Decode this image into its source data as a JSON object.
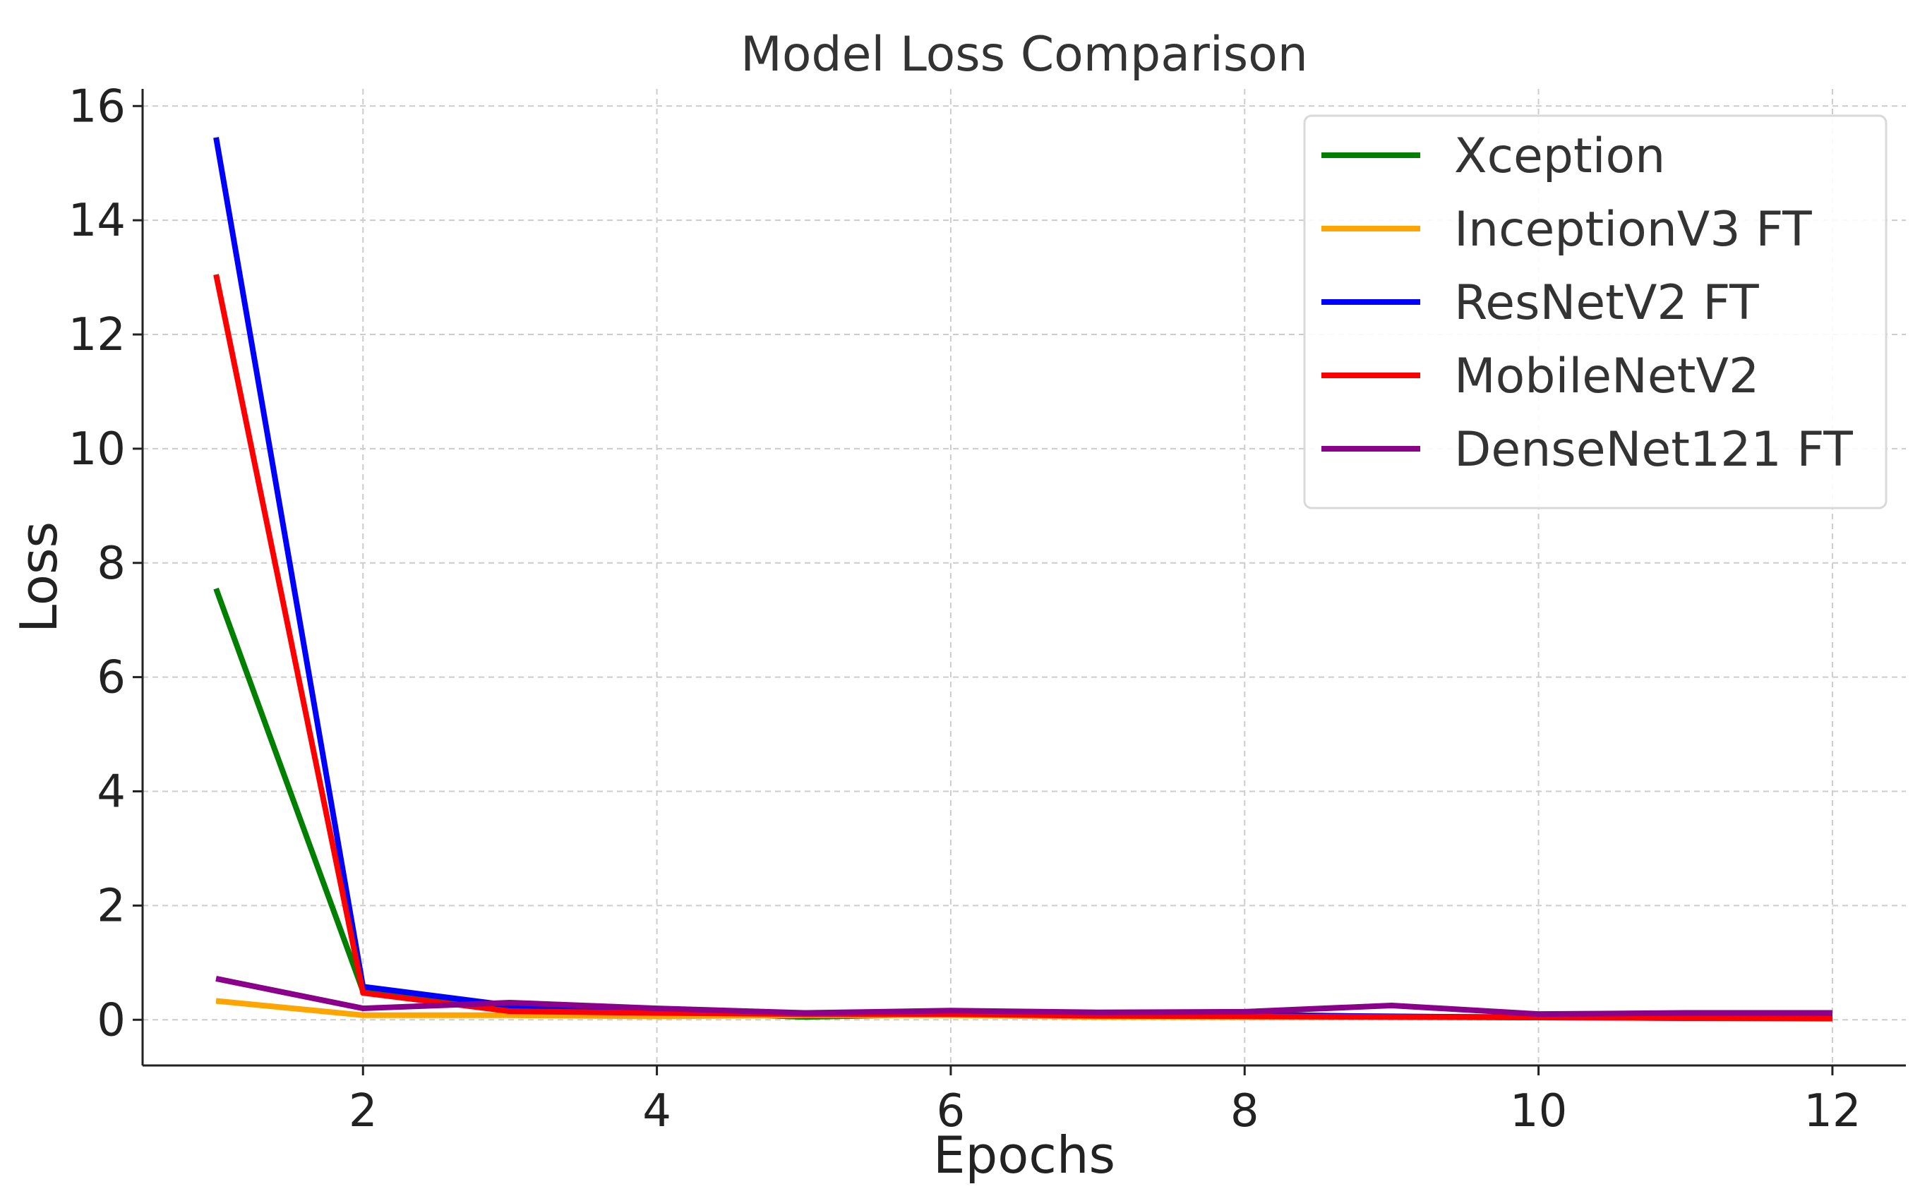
{
  "chart_data": {
    "type": "line",
    "title": "Model Loss Comparison",
    "xlabel": "Epochs",
    "ylabel": "Loss",
    "xlim": [
      0.5,
      12.5
    ],
    "ylim": [
      -0.8,
      16.3
    ],
    "xticks": [
      2,
      4,
      6,
      8,
      10,
      12
    ],
    "yticks": [
      0,
      2,
      4,
      6,
      8,
      10,
      12,
      14,
      16
    ],
    "grid": true,
    "legend_position": "top-right",
    "x": [
      1,
      2,
      3,
      4,
      5,
      6,
      7,
      8,
      9,
      10,
      11,
      12
    ],
    "series": [
      {
        "name": "Xception",
        "color": "#008000",
        "values": [
          7.55,
          0.5,
          0.2,
          0.15,
          0.05,
          0.1,
          0.08,
          0.1,
          0.05,
          0.05,
          0.06,
          0.08
        ]
      },
      {
        "name": "InceptionV3 FT",
        "color": "#FFA500",
        "values": [
          0.33,
          0.08,
          0.08,
          0.06,
          0.08,
          0.08,
          0.05,
          0.05,
          0.05,
          0.05,
          0.05,
          0.05
        ]
      },
      {
        "name": "ResNetV2 FT",
        "color": "#0000FF",
        "values": [
          15.45,
          0.58,
          0.25,
          0.18,
          0.1,
          0.12,
          0.1,
          0.08,
          0.06,
          0.04,
          0.03,
          0.03
        ]
      },
      {
        "name": "MobileNetV2",
        "color": "#FF0000",
        "values": [
          13.05,
          0.47,
          0.15,
          0.12,
          0.1,
          0.1,
          0.07,
          0.06,
          0.05,
          0.04,
          0.03,
          0.02
        ]
      },
      {
        "name": "DenseNet121 FT",
        "color": "#8B008B",
        "values": [
          0.72,
          0.2,
          0.3,
          0.2,
          0.12,
          0.16,
          0.13,
          0.14,
          0.25,
          0.1,
          0.12,
          0.12
        ]
      }
    ]
  }
}
